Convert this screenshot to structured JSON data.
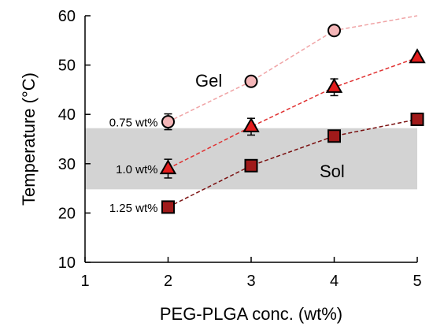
{
  "chart_data": {
    "type": "scatter",
    "xlabel": "PEG-PLGA conc. (wt%)",
    "ylabel": "Temperature (°C)",
    "xlim": [
      1,
      5
    ],
    "ylim": [
      10,
      60
    ],
    "xticks": [
      "1",
      "2",
      "3",
      "4",
      "5"
    ],
    "yticks": [
      "10",
      "20",
      "30",
      "40",
      "50",
      "60"
    ],
    "grid": false,
    "legend": "none",
    "shaded_band": {
      "y_from": 24.8,
      "y_to": 37.2,
      "color": "#d3d3d3"
    },
    "region_labels": [
      "Gel",
      "Sol"
    ],
    "series": [
      {
        "name": "0.75 wt%",
        "marker": "circle",
        "fill": "#f4b6b8",
        "line_color": "#f0a4a6",
        "x": [
          2,
          3,
          4,
          5
        ],
        "y": [
          38.5,
          46.7,
          57.0,
          60.0
        ],
        "error": [
          1.6,
          0,
          0,
          0
        ],
        "marker_shown": [
          true,
          true,
          true,
          false
        ]
      },
      {
        "name": "1.0 wt%",
        "marker": "triangle",
        "fill": "#e21c1c",
        "line_color": "#e03030",
        "x": [
          2,
          3,
          4,
          5
        ],
        "y": [
          29.0,
          37.5,
          45.5,
          51.5
        ],
        "error": [
          1.9,
          1.7,
          1.7,
          0
        ],
        "marker_shown": [
          true,
          true,
          true,
          true
        ]
      },
      {
        "name": "1.25 wt%",
        "marker": "square",
        "fill": "#a01a1a",
        "line_color": "#7a1010",
        "x": [
          2,
          3,
          4,
          5
        ],
        "y": [
          21.2,
          29.6,
          35.6,
          39.0
        ],
        "error": [
          0,
          0,
          0,
          0
        ],
        "marker_shown": [
          true,
          true,
          true,
          true
        ]
      }
    ]
  }
}
